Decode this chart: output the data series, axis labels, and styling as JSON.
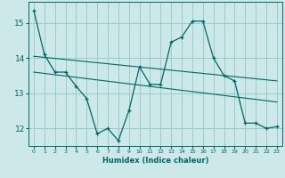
{
  "xlabel": "Humidex (Indice chaleur)",
  "bg_color": "#cce8e8",
  "grid_color": "#99cccc",
  "line_color": "#006666",
  "xlim": [
    -0.5,
    23.5
  ],
  "ylim": [
    11.5,
    15.6
  ],
  "yticks": [
    12,
    13,
    14,
    15
  ],
  "xticks": [
    0,
    1,
    2,
    3,
    4,
    5,
    6,
    7,
    8,
    9,
    10,
    11,
    12,
    13,
    14,
    15,
    16,
    17,
    18,
    19,
    20,
    21,
    22,
    23
  ],
  "series1_x": [
    0,
    1,
    2,
    3,
    4,
    5,
    6,
    7,
    8,
    9,
    10,
    11,
    12,
    13,
    14,
    15,
    16,
    17,
    18,
    19,
    20,
    21,
    22,
    23
  ],
  "series1_y": [
    15.35,
    14.1,
    13.6,
    13.6,
    13.2,
    12.85,
    11.85,
    12.0,
    11.65,
    12.5,
    13.75,
    13.25,
    13.25,
    14.45,
    14.6,
    15.05,
    15.05,
    14.0,
    13.5,
    13.35,
    12.15,
    12.15,
    12.0,
    12.05
  ],
  "series2_x": [
    0,
    23
  ],
  "series2_y": [
    14.05,
    13.35
  ],
  "series3_x": [
    0,
    23
  ],
  "series3_y": [
    13.6,
    12.75
  ]
}
